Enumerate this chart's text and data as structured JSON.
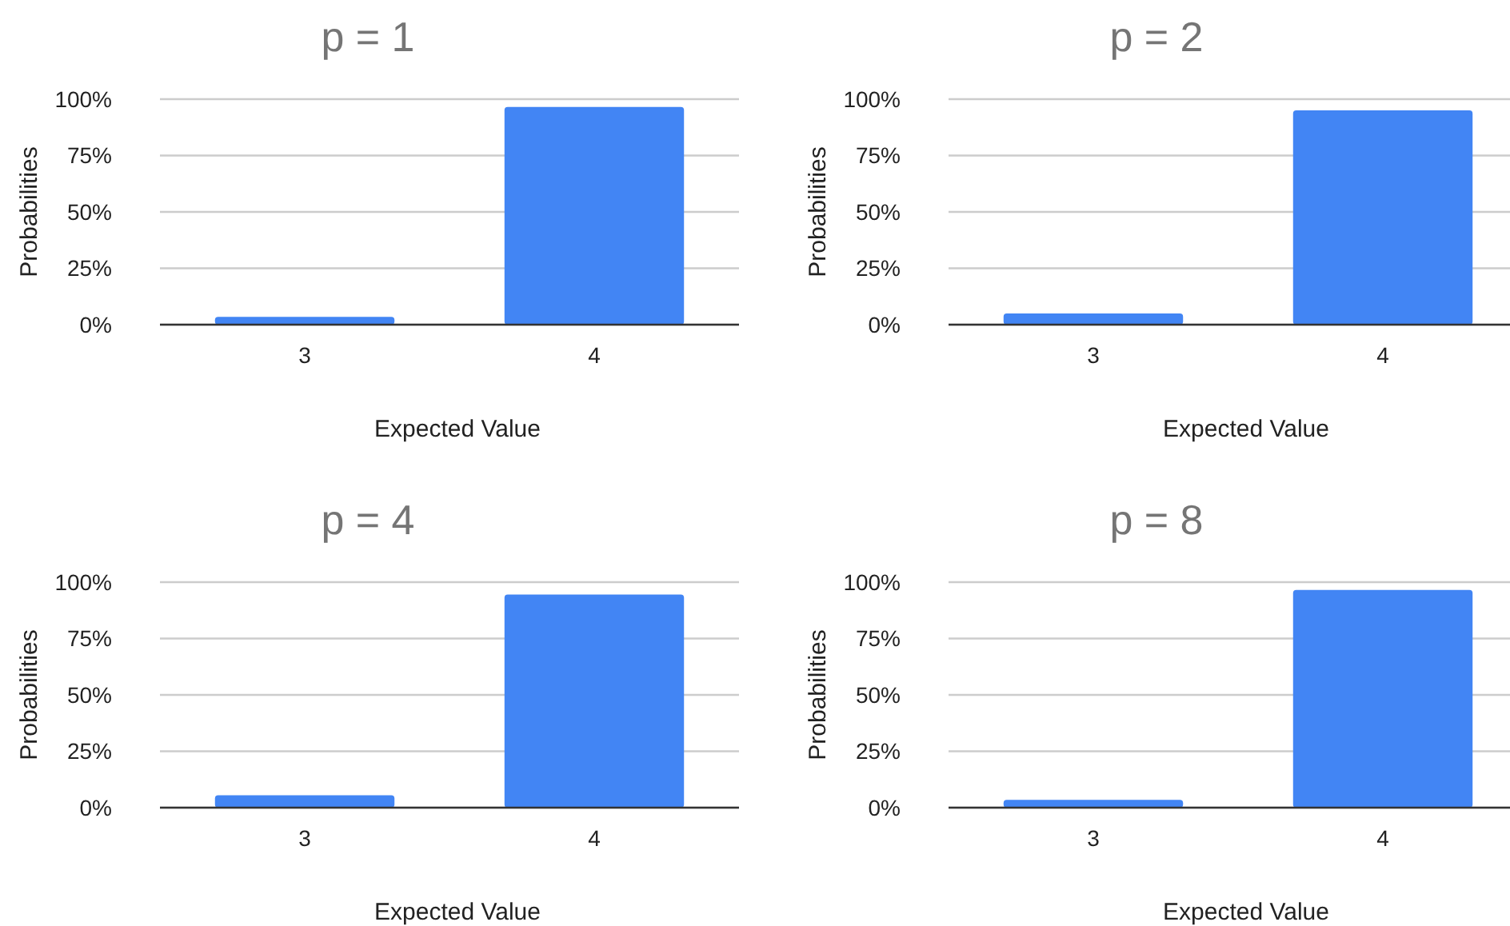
{
  "chart_data": [
    {
      "type": "bar",
      "title": "p = 1",
      "xlabel": "Expected Value",
      "ylabel": "Probabilities",
      "categories": [
        "3",
        "4"
      ],
      "values": [
        3.5,
        96.5
      ],
      "color": "#4285f4",
      "ylim": [
        0,
        100
      ],
      "yticks": [
        {
          "value": 0,
          "label": "0%"
        },
        {
          "value": 25,
          "label": "25%"
        },
        {
          "value": 50,
          "label": "50%"
        },
        {
          "value": 75,
          "label": "75%"
        },
        {
          "value": 100,
          "label": "100%"
        }
      ],
      "grid": "y"
    },
    {
      "type": "bar",
      "title": "p = 2",
      "xlabel": "Expected Value",
      "ylabel": "Probabilities",
      "categories": [
        "3",
        "4"
      ],
      "values": [
        5,
        95
      ],
      "color": "#4285f4",
      "ylim": [
        0,
        100
      ],
      "yticks": [
        {
          "value": 0,
          "label": "0%"
        },
        {
          "value": 25,
          "label": "25%"
        },
        {
          "value": 50,
          "label": "50%"
        },
        {
          "value": 75,
          "label": "75%"
        },
        {
          "value": 100,
          "label": "100%"
        }
      ],
      "grid": "y"
    },
    {
      "type": "bar",
      "title": "p = 4",
      "xlabel": "Expected Value",
      "ylabel": "Probabilities",
      "categories": [
        "3",
        "4"
      ],
      "values": [
        5.5,
        94.5
      ],
      "color": "#4285f4",
      "ylim": [
        0,
        100
      ],
      "yticks": [
        {
          "value": 0,
          "label": "0%"
        },
        {
          "value": 25,
          "label": "25%"
        },
        {
          "value": 50,
          "label": "50%"
        },
        {
          "value": 75,
          "label": "75%"
        },
        {
          "value": 100,
          "label": "100%"
        }
      ],
      "grid": "y"
    },
    {
      "type": "bar",
      "title": "p = 8",
      "xlabel": "Expected Value",
      "ylabel": "Probabilities",
      "categories": [
        "3",
        "4"
      ],
      "values": [
        3.5,
        96.5
      ],
      "color": "#4285f4",
      "ylim": [
        0,
        100
      ],
      "yticks": [
        {
          "value": 0,
          "label": "0%"
        },
        {
          "value": 25,
          "label": "25%"
        },
        {
          "value": 50,
          "label": "50%"
        },
        {
          "value": 75,
          "label": "75%"
        },
        {
          "value": 100,
          "label": "100%"
        }
      ],
      "grid": "y"
    }
  ]
}
